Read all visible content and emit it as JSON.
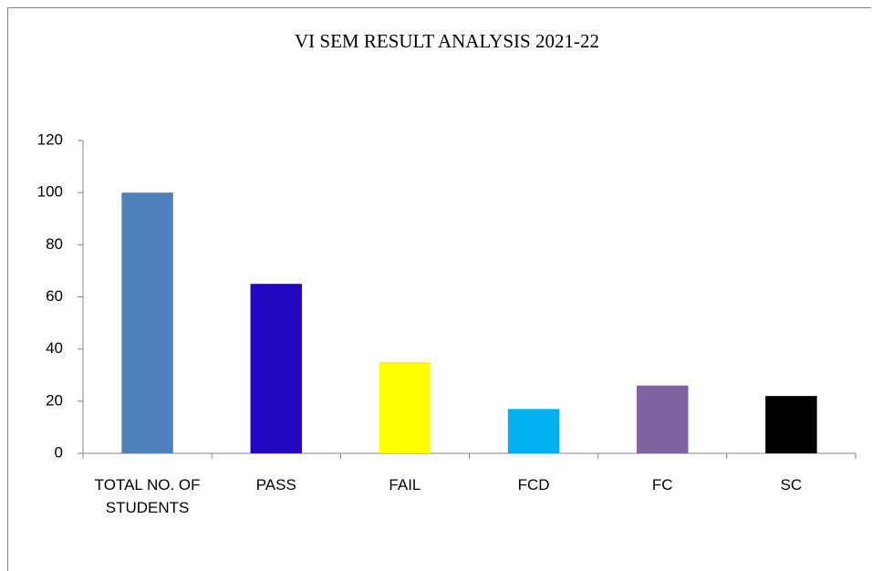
{
  "chart_data": {
    "type": "bar",
    "title": "VI SEM RESULT ANALYSIS 2021-22",
    "categories": [
      "TOTAL NO. OF STUDENTS",
      "PASS",
      "FAIL",
      "FCD",
      "FC",
      "SC"
    ],
    "values": [
      100,
      65,
      35,
      17,
      26,
      22
    ],
    "colors": [
      "#4f81bd",
      "#2208c0",
      "#ffff00",
      "#00b0f0",
      "#8064a2",
      "#000000"
    ],
    "ylim": [
      0,
      120
    ],
    "yticks": [
      0,
      20,
      40,
      60,
      80,
      100,
      120
    ],
    "grid": false
  }
}
